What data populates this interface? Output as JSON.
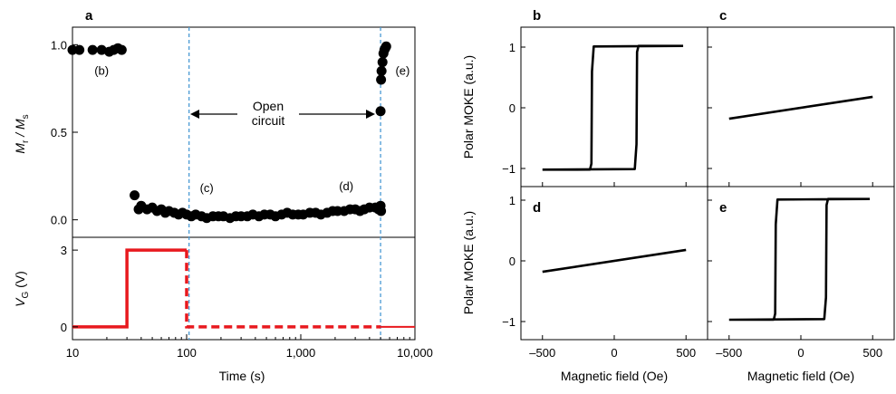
{
  "chart_data": [
    {
      "id": "a",
      "type": "scatter",
      "panel_label": "a",
      "xscale": "log",
      "xlim": [
        10,
        10000
      ],
      "xticks": [
        10,
        100,
        1000,
        10000
      ],
      "xtick_labels": [
        "10",
        "100",
        "1,000",
        "10,000"
      ],
      "xlabel": "Time (s)",
      "top": {
        "ylabel_main": "M",
        "ylabel_sub1": "r",
        "ylabel_mid": " / M",
        "ylabel_sub2": "s",
        "ylim": [
          -0.1,
          1.1
        ],
        "yticks": [
          0.0,
          0.5,
          1.0
        ],
        "ytick_labels": [
          "0.0",
          "0.5",
          "1.0"
        ],
        "points": [
          [
            10,
            0.97
          ],
          [
            11.5,
            0.97
          ],
          [
            15,
            0.97
          ],
          [
            18,
            0.97
          ],
          [
            21,
            0.96
          ],
          [
            23,
            0.97
          ],
          [
            25,
            0.98
          ],
          [
            27,
            0.97
          ],
          [
            35,
            0.14
          ],
          [
            38,
            0.06
          ],
          [
            40,
            0.08
          ],
          [
            45,
            0.06
          ],
          [
            50,
            0.07
          ],
          [
            55,
            0.05
          ],
          [
            60,
            0.06
          ],
          [
            65,
            0.04
          ],
          [
            70,
            0.05
          ],
          [
            78,
            0.04
          ],
          [
            85,
            0.03
          ],
          [
            92,
            0.04
          ],
          [
            100,
            0.03
          ],
          [
            110,
            0.02
          ],
          [
            120,
            0.03
          ],
          [
            135,
            0.02
          ],
          [
            150,
            0.01
          ],
          [
            170,
            0.02
          ],
          [
            190,
            0.02
          ],
          [
            210,
            0.02
          ],
          [
            240,
            0.01
          ],
          [
            270,
            0.02
          ],
          [
            300,
            0.02
          ],
          [
            340,
            0.02
          ],
          [
            380,
            0.03
          ],
          [
            430,
            0.02
          ],
          [
            480,
            0.03
          ],
          [
            540,
            0.03
          ],
          [
            600,
            0.02
          ],
          [
            680,
            0.03
          ],
          [
            760,
            0.04
          ],
          [
            850,
            0.03
          ],
          [
            950,
            0.03
          ],
          [
            1050,
            0.03
          ],
          [
            1200,
            0.04
          ],
          [
            1350,
            0.04
          ],
          [
            1500,
            0.03
          ],
          [
            1700,
            0.04
          ],
          [
            1900,
            0.05
          ],
          [
            2100,
            0.05
          ],
          [
            2400,
            0.05
          ],
          [
            2700,
            0.06
          ],
          [
            3000,
            0.06
          ],
          [
            3300,
            0.05
          ],
          [
            3600,
            0.06
          ],
          [
            4000,
            0.07
          ],
          [
            4500,
            0.07
          ],
          [
            4800,
            0.06
          ],
          [
            5000,
            0.08
          ],
          [
            5050,
            0.05
          ],
          [
            5000,
            0.62
          ],
          [
            5050,
            0.8
          ],
          [
            5100,
            0.85
          ],
          [
            5200,
            0.9
          ],
          [
            5300,
            0.95
          ],
          [
            5400,
            0.97
          ],
          [
            5500,
            0.98
          ],
          [
            5600,
            0.99
          ]
        ],
        "annotations": [
          {
            "text": "(b)",
            "x": 18,
            "y": 0.85
          },
          {
            "text": "(c)",
            "x": 150,
            "y": 0.18
          },
          {
            "text": "(d)",
            "x": 2500,
            "y": 0.19
          },
          {
            "text": "(e)",
            "x": 7800,
            "y": 0.85
          }
        ],
        "open_circuit_label": [
          "Open",
          "circuit"
        ]
      },
      "bottom": {
        "ylabel_main": "V",
        "ylabel_sub": "G",
        "ylabel_rest": " (V)",
        "ylim": [
          -0.5,
          3.5
        ],
        "yticks": [
          0,
          3
        ],
        "ytick_labels": [
          "0",
          "3"
        ],
        "solid_segments": [
          [
            10,
            0
          ],
          [
            30,
            0
          ],
          [
            30,
            3
          ],
          [
            100,
            3
          ]
        ],
        "dashed_segments": [
          [
            100,
            3
          ],
          [
            100,
            0
          ],
          [
            5000,
            0
          ]
        ],
        "solid_tail": [
          [
            5000,
            0
          ],
          [
            10000,
            0
          ]
        ]
      },
      "vlines_x": [
        105,
        5000
      ],
      "colors": {
        "points": "#000000",
        "voltage": "#e8191e",
        "vline": "#4a9ad4"
      }
    },
    {
      "id": "b",
      "type": "line",
      "panel_label": "b",
      "xlim": [
        -650,
        650
      ],
      "ylim": [
        -1.3,
        1.3
      ],
      "loop": {
        "coercive": 155,
        "sat": 1.02,
        "low": -1.02
      }
    },
    {
      "id": "c",
      "type": "line",
      "panel_label": "c",
      "xlim": [
        -650,
        650
      ],
      "ylim": [
        -1.3,
        1.3
      ],
      "linear": [
        [
          -500,
          -0.18
        ],
        [
          500,
          0.18
        ]
      ]
    },
    {
      "id": "d",
      "type": "line",
      "panel_label": "d",
      "xlim": [
        -650,
        650
      ],
      "ylim": [
        -1.3,
        1.3
      ],
      "linear": [
        [
          -500,
          -0.18
        ],
        [
          500,
          0.18
        ]
      ]
    },
    {
      "id": "e",
      "type": "line",
      "panel_label": "e",
      "xlim": [
        -650,
        650
      ],
      "ylim": [
        -1.3,
        1.3
      ],
      "loop": {
        "coercive": 175,
        "sat": 1.02,
        "low": -0.97
      }
    }
  ],
  "moke_axes": {
    "ylabel": "Polar MOKE (a.u.)",
    "xlabel": "Magnetic field (Oe)",
    "xticks": [
      -500,
      0,
      500
    ],
    "xtick_labels": [
      "–500",
      "0",
      "500"
    ],
    "yticks": [
      -1,
      0,
      1
    ],
    "ytick_labels": [
      "−1",
      "0",
      "1"
    ]
  }
}
